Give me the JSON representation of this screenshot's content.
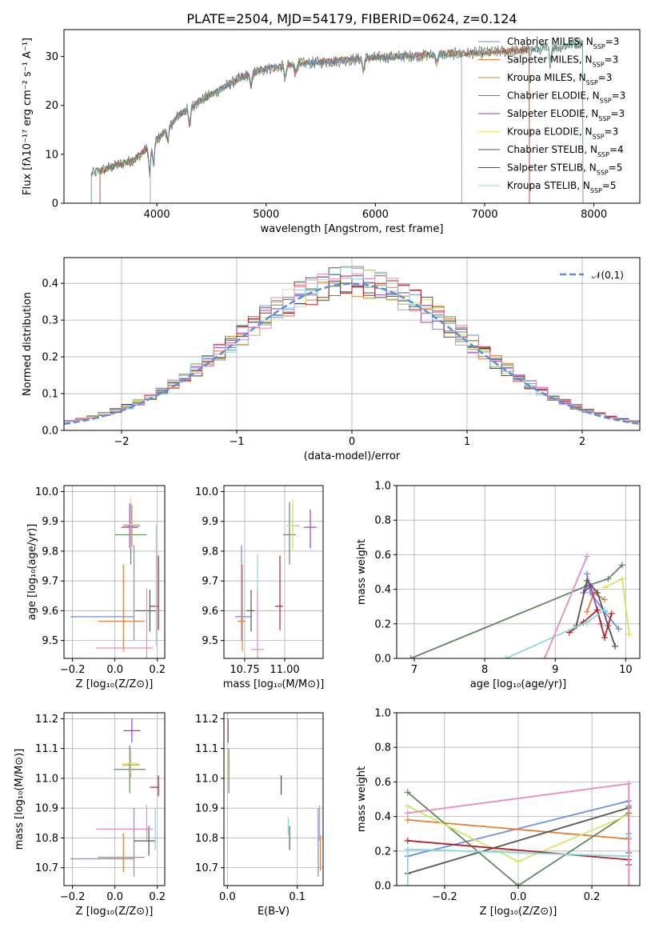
{
  "figure": {
    "title": "PLATE=2504, MJD=54179, FIBERID=0624, z=0.124"
  },
  "legend": {
    "entries": [
      {
        "label": "Chabrier MILES, N",
        "sub": "SSP",
        "tail": "=3",
        "color": "#6e8fdc"
      },
      {
        "label": "Salpeter MILES, N",
        "sub": "SSP",
        "tail": "=3",
        "color": "#e47f37"
      },
      {
        "label": "Kroupa MILES, N",
        "sub": "SSP",
        "tail": "=3",
        "color": "#b0902f"
      },
      {
        "label": "Chabrier ELODIE, N",
        "sub": "SSP",
        "tail": "=3",
        "color": "#5e8a60"
      },
      {
        "label": "Salpeter ELODIE, N",
        "sub": "SSP",
        "tail": "=3",
        "color": "#9b3fc4"
      },
      {
        "label": "Kroupa ELODIE, N",
        "sub": "SSP",
        "tail": "=3",
        "color": "#d7e368"
      },
      {
        "label": "Chabrier STELIB, N",
        "sub": "SSP",
        "tail": "=4",
        "color": "#555555"
      },
      {
        "label": "Salpeter STELIB, N",
        "sub": "SSP",
        "tail": "=5",
        "color": "#b3222a"
      },
      {
        "label": "Kroupa STELIB, N",
        "sub": "SSP",
        "tail": "=5",
        "color": "#88d8dd"
      }
    ],
    "gauss_label": "𝒩(0,1)"
  },
  "chart_data": [
    {
      "type": "line",
      "id": "spectrum",
      "xlabel": "wavelength [Angstrom, rest frame]",
      "ylabel": "Flux [fλ10⁻¹⁷ erg cm⁻² s⁻¹ A⁻¹]",
      "xlim": [
        3150,
        8420
      ],
      "ylim": [
        0,
        35.5
      ],
      "xticks": [
        4000,
        5000,
        6000,
        7000,
        8000
      ],
      "yticks": [
        0,
        10,
        20,
        30
      ],
      "continuum": [
        [
          3400,
          6.0
        ],
        [
          3600,
          7.5
        ],
        [
          3800,
          9.0
        ],
        [
          3950,
          12.0
        ],
        [
          4050,
          14.0
        ],
        [
          4200,
          18.0
        ],
        [
          4400,
          21.0
        ],
        [
          4600,
          23.5
        ],
        [
          4800,
          26.0
        ],
        [
          5000,
          27.5
        ],
        [
          5300,
          28.5
        ],
        [
          5600,
          29.0
        ],
        [
          6000,
          29.8
        ],
        [
          6500,
          30.3
        ],
        [
          7000,
          30.8
        ],
        [
          7400,
          31.3
        ],
        [
          7700,
          32.0
        ],
        [
          7900,
          33.0
        ]
      ],
      "model_ranges": [
        [
          3480,
          7410
        ],
        [
          3940,
          6790
        ],
        [
          3400,
          7900
        ]
      ]
    },
    {
      "type": "line",
      "id": "residual_hist",
      "xlabel": "(data-model)/error",
      "ylabel": "Normed distribution",
      "xlim": [
        -2.5,
        2.5
      ],
      "ylim": [
        0,
        0.47
      ],
      "xticks": [
        -2,
        -1,
        0,
        1,
        2
      ],
      "yticks": [
        0.0,
        0.1,
        0.2,
        0.3,
        0.4
      ],
      "gaussian": {
        "mean": 0,
        "sigma": 1,
        "name": "𝒩(0,1)"
      }
    },
    {
      "type": "scatter",
      "id": "age_vs_Z",
      "xlabel": "Z [log₁₀(Z/Z⊙)]",
      "ylabel": "age [log₁₀(age/yr)]",
      "xlim": [
        -0.24,
        0.235
      ],
      "ylim": [
        9.44,
        10.02
      ],
      "xticks": [
        -0.2,
        0.0,
        0.2
      ],
      "yticks": [
        9.5,
        9.6,
        9.7,
        9.8,
        9.9,
        10.0
      ],
      "points": [
        {
          "x": 0.09,
          "y": 9.58,
          "xerr": [
            0.3,
            0.0
          ],
          "yerr": [
            0.08,
            0.24
          ],
          "series": 0
        },
        {
          "x": 0.04,
          "y": 9.565,
          "xerr": [
            0.12,
            0.1
          ],
          "yerr": [
            0.1,
            0.19
          ],
          "series": 1
        },
        {
          "x": 0.08,
          "y": 9.885,
          "xerr": [
            0.04,
            0.04
          ],
          "yerr": [
            0.07,
            0.07
          ],
          "series": 2
        },
        {
          "x": 0.075,
          "y": 9.855,
          "xerr": [
            0.075,
            0.075
          ],
          "yerr": [
            0.1,
            0.11
          ],
          "series": 3
        },
        {
          "x": 0.07,
          "y": 9.88,
          "xerr": [
            0.04,
            0.04
          ],
          "yerr": [
            0.07,
            0.08
          ],
          "series": 4
        },
        {
          "x": 0.075,
          "y": 9.89,
          "xerr": [
            0.04,
            0.04
          ],
          "yerr": [
            0.08,
            0.09
          ],
          "series": 5
        },
        {
          "x": 0.165,
          "y": 9.6,
          "xerr": [
            0.07,
            0.03
          ],
          "yerr": [
            0.07,
            0.07
          ],
          "series": 6
        },
        {
          "x": 0.205,
          "y": 9.615,
          "xerr": [
            0.04,
            0.0
          ],
          "yerr": [
            0.08,
            0.17
          ],
          "series": 7
        },
        {
          "x": 0.195,
          "y": 9.62,
          "xerr": [
            0.0,
            0.0
          ],
          "yerr": [
            0.14,
            0.27
          ],
          "series": 8
        },
        {
          "x": 0.15,
          "y": 9.475,
          "xerr": [
            0.24,
            0.03
          ],
          "yerr": [
            0.04,
            0.2
          ],
          "series": 9
        }
      ]
    },
    {
      "type": "scatter",
      "id": "age_vs_mass",
      "xlabel": "mass [log₁₀(M/M⊙)]",
      "ylabel": "",
      "xlim": [
        10.62,
        11.24
      ],
      "ylim": [
        9.44,
        10.02
      ],
      "xticks": [
        10.75,
        11.0
      ],
      "xticklabels": [
        "10.75",
        "11.00"
      ],
      "yticks": [
        9.5,
        9.6,
        9.7,
        9.8,
        9.9,
        10.0
      ],
      "points": [
        {
          "x": 10.73,
          "y": 9.58,
          "xerr": [
            0.04,
            0.06
          ],
          "yerr": [
            0.08,
            0.24
          ],
          "series": 0
        },
        {
          "x": 10.735,
          "y": 9.565,
          "xerr": [
            0.03,
            0.02
          ],
          "yerr": [
            0.1,
            0.19
          ],
          "series": 1
        },
        {
          "x": 11.05,
          "y": 9.885,
          "xerr": [
            0.04,
            0.04
          ],
          "yerr": [
            0.07,
            0.07
          ],
          "series": 2
        },
        {
          "x": 11.03,
          "y": 9.855,
          "xerr": [
            0.04,
            0.04
          ],
          "yerr": [
            0.1,
            0.11
          ],
          "series": 3
        },
        {
          "x": 11.16,
          "y": 9.88,
          "xerr": [
            0.04,
            0.04
          ],
          "yerr": [
            0.07,
            0.06
          ],
          "series": 4
        },
        {
          "x": 11.05,
          "y": 9.885,
          "xerr": [
            0.04,
            0.03
          ],
          "yerr": [
            0.08,
            0.09
          ],
          "series": 5
        },
        {
          "x": 10.79,
          "y": 9.6,
          "xerr": [
            0.03,
            0.02
          ],
          "yerr": [
            0.07,
            0.07
          ],
          "series": 6
        },
        {
          "x": 10.97,
          "y": 9.615,
          "xerr": [
            0.03,
            0.02
          ],
          "yerr": [
            0.08,
            0.17
          ],
          "series": 7
        },
        {
          "x": 10.83,
          "y": 9.61,
          "xerr": [
            0.0,
            0.0
          ],
          "yerr": [
            0.13,
            0.18
          ],
          "series": 8
        },
        {
          "x": 10.83,
          "y": 9.47,
          "xerr": [
            0.04,
            0.04
          ],
          "yerr": [
            0.03,
            0.2
          ],
          "series": 9
        }
      ]
    },
    {
      "type": "line",
      "id": "massweight_vs_age",
      "xlabel": "age [log₁₀(age/yr)]",
      "ylabel": "mass weight",
      "xlim": [
        6.75,
        10.2
      ],
      "ylim": [
        0,
        1.0
      ],
      "xticks": [
        7,
        8,
        9,
        10
      ],
      "yticks": [
        0.0,
        0.2,
        0.4,
        0.6,
        0.8,
        1.0
      ],
      "series": [
        {
          "series": 0,
          "x": [
            9.45,
            9.5,
            9.7,
            9.9
          ],
          "y": [
            0.49,
            0.38,
            0.27,
            0.17
          ]
        },
        {
          "series": 1,
          "x": [
            9.45,
            9.55,
            9.7
          ],
          "y": [
            0.27,
            0.38,
            0.34
          ]
        },
        {
          "series": 3,
          "x": [
            6.95,
            9.45,
            9.75,
            9.95
          ],
          "y": [
            0.0,
            0.42,
            0.46,
            0.54
          ]
        },
        {
          "series": 4,
          "x": [
            9.4,
            9.5,
            9.65
          ],
          "y": [
            0.38,
            0.42,
            0.2
          ]
        },
        {
          "series": 5,
          "x": [
            9.7,
            9.95,
            10.05
          ],
          "y": [
            0.41,
            0.46,
            0.14
          ]
        },
        {
          "series": 6,
          "x": [
            9.3,
            9.45,
            9.6,
            9.75,
            9.85
          ],
          "y": [
            0.19,
            0.45,
            0.38,
            0.19,
            0.07
          ]
        },
        {
          "series": 7,
          "x": [
            9.2,
            9.4,
            9.6,
            9.7,
            9.8
          ],
          "y": [
            0.15,
            0.21,
            0.28,
            0.12,
            0.26
          ]
        },
        {
          "series": 8,
          "x": [
            8.3,
            9.45,
            9.7
          ],
          "y": [
            0.0,
            0.21,
            0.28
          ]
        },
        {
          "series": 9,
          "x": [
            8.85,
            9.45
          ],
          "y": [
            0.0,
            0.59
          ]
        }
      ]
    },
    {
      "type": "scatter",
      "id": "mass_vs_Z",
      "xlabel": "Z [log₁₀(Z/Z⊙)]",
      "ylabel": "mass [log₁₀(M/M⊙)]",
      "xlim": [
        -0.24,
        0.235
      ],
      "ylim": [
        10.64,
        11.22
      ],
      "xticks": [
        -0.2,
        0.0,
        0.2
      ],
      "yticks": [
        10.7,
        10.8,
        10.9,
        11.0,
        11.1,
        11.2
      ],
      "points": [
        {
          "x": 0.09,
          "y": 10.73,
          "xerr": [
            0.3,
            0.0
          ],
          "yerr": [
            0.06,
            0.17
          ],
          "series": 0
        },
        {
          "x": 0.04,
          "y": 10.735,
          "xerr": [
            0.12,
            0.1
          ],
          "yerr": [
            0.05,
            0.08
          ],
          "series": 1
        },
        {
          "x": 0.075,
          "y": 11.045,
          "xerr": [
            0.04,
            0.04
          ],
          "yerr": [
            0.04,
            0.04
          ],
          "series": 2
        },
        {
          "x": 0.07,
          "y": 11.03,
          "xerr": [
            0.075,
            0.075
          ],
          "yerr": [
            0.08,
            0.08
          ],
          "series": 3
        },
        {
          "x": 0.08,
          "y": 11.16,
          "xerr": [
            0.04,
            0.04
          ],
          "yerr": [
            0.04,
            0.04
          ],
          "series": 4
        },
        {
          "x": 0.075,
          "y": 11.05,
          "xerr": [
            0.04,
            0.04
          ],
          "yerr": [
            0.04,
            0.05
          ],
          "series": 5
        },
        {
          "x": 0.16,
          "y": 10.79,
          "xerr": [
            0.07,
            0.03
          ],
          "yerr": [
            0.05,
            0.05
          ],
          "series": 6
        },
        {
          "x": 0.205,
          "y": 10.97,
          "xerr": [
            0.04,
            0.0
          ],
          "yerr": [
            0.03,
            0.04
          ],
          "series": 7
        },
        {
          "x": 0.19,
          "y": 10.83,
          "xerr": [
            0.0,
            0.0
          ],
          "yerr": [
            0.07,
            0.07
          ],
          "series": 8
        },
        {
          "x": 0.15,
          "y": 10.83,
          "xerr": [
            0.24,
            0.03
          ],
          "yerr": [
            0.04,
            0.08
          ],
          "series": 9
        }
      ]
    },
    {
      "type": "scatter",
      "id": "mass_vs_EBV",
      "xlabel": "E(B-V)",
      "ylabel": "",
      "xlim": [
        -0.005,
        0.137
      ],
      "ylim": [
        10.64,
        11.22
      ],
      "xticks": [
        0.0,
        0.1
      ],
      "yticks": [
        10.7,
        10.8,
        10.9,
        11.0,
        11.1,
        11.2
      ],
      "points": [
        {
          "x": 0.13,
          "y": 10.73,
          "yerr": [
            0.06,
            0.17
          ],
          "series": 0
        },
        {
          "x": 0.133,
          "y": 10.75,
          "yerr": [
            0.06,
            0.06
          ],
          "series": 1
        },
        {
          "x": 0.001,
          "y": 11.045,
          "yerr": [
            0.04,
            0.05
          ],
          "series": 2
        },
        {
          "x": 0.002,
          "y": 11.0,
          "yerr": [
            0.05,
            0.1
          ],
          "series": 3
        },
        {
          "x": 0.001,
          "y": 11.16,
          "yerr": [
            0.04,
            0.04
          ],
          "series": 4
        },
        {
          "x": 0.001,
          "y": 11.05,
          "yerr": [
            0.05,
            0.05
          ],
          "series": 5
        },
        {
          "x": 0.089,
          "y": 10.8,
          "yerr": [
            0.04,
            0.04
          ],
          "series": 6
        },
        {
          "x": 0.077,
          "y": 10.975,
          "yerr": [
            0.03,
            0.035
          ],
          "series": 7
        },
        {
          "x": 0.087,
          "y": 10.83,
          "yerr": [
            0.02,
            0.04
          ],
          "series": 8
        },
        {
          "x": 0.132,
          "y": 10.83,
          "yerr": [
            0.04,
            0.08
          ],
          "series": 9
        }
      ]
    },
    {
      "type": "line",
      "id": "massweight_vs_Z",
      "xlabel": "Z [log₁₀(Z/Z⊙)]",
      "ylabel": "mass weight",
      "xlim": [
        -0.33,
        0.33
      ],
      "ylim": [
        0,
        1.0
      ],
      "xticks": [
        -0.2,
        0.0,
        0.2
      ],
      "yticks": [
        0.0,
        0.2,
        0.4,
        0.6,
        0.8,
        1.0
      ],
      "series": [
        {
          "series": 0,
          "x": [
            -0.3,
            0.3,
            0.3
          ],
          "y": [
            0.17,
            0.49,
            0.3
          ]
        },
        {
          "series": 1,
          "x": [
            -0.3,
            0.3
          ],
          "y": [
            0.38,
            0.27
          ]
        },
        {
          "series": 3,
          "x": [
            -0.3,
            0.0,
            0.3,
            0.3
          ],
          "y": [
            0.54,
            0.0,
            0.42,
            0.46
          ]
        },
        {
          "series": 5,
          "x": [
            -0.3,
            0.0,
            0.3
          ],
          "y": [
            0.46,
            0.14,
            0.41
          ]
        },
        {
          "series": 6,
          "x": [
            -0.3,
            0.3,
            0.3
          ],
          "y": [
            0.07,
            0.45,
            0.19
          ]
        },
        {
          "series": 7,
          "x": [
            -0.3,
            0.3,
            0.3
          ],
          "y": [
            0.26,
            0.15,
            0.12
          ]
        },
        {
          "series": 8,
          "x": [
            -0.3,
            -0.3,
            0.3,
            0.3
          ],
          "y": [
            0.0,
            0.21,
            0.17,
            0.28
          ]
        },
        {
          "series": 9,
          "x": [
            -0.3,
            0.3,
            0.3
          ],
          "y": [
            0.42,
            0.59,
            0.0
          ]
        }
      ]
    }
  ]
}
